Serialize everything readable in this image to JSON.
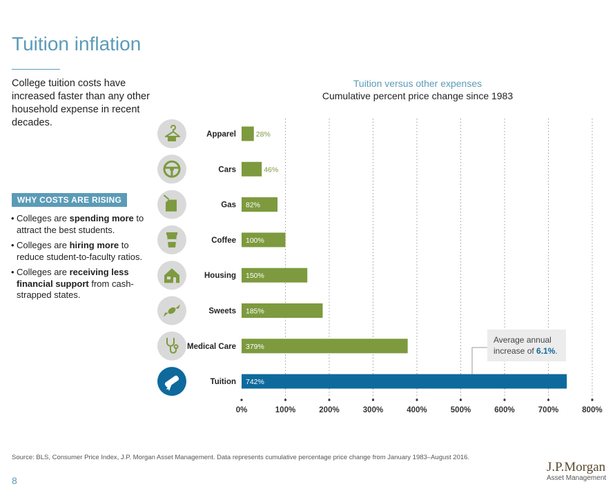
{
  "page": {
    "title": "Tuition inflation",
    "intro": "College tuition costs have increased faster than any other household expense in recent decades.",
    "why_heading": "WHY COSTS ARE RISING",
    "reasons": [
      {
        "pre": "Colleges are ",
        "bold": "spending more",
        "post": " to attract the best students."
      },
      {
        "pre": "Colleges are ",
        "bold": "hiring more",
        "post": " to reduce student-to-faculty ratios."
      },
      {
        "pre": "Colleges are ",
        "bold": "receiving less financial support",
        "post": " from cash-strapped states."
      }
    ],
    "source": "Source: BLS, Consumer Price Index, J.P. Morgan Asset Management. Data represents cumulative percentage price change from January 1983–August 2016.",
    "page_number": "8",
    "logo": {
      "name": "J.P.Morgan",
      "sub": "Asset Management"
    }
  },
  "chart_data": {
    "type": "bar",
    "orientation": "horizontal",
    "title": "Tuition versus other expenses",
    "subtitle": "Cumulative percent price change since 1983",
    "categories": [
      "Apparel",
      "Cars",
      "Gas",
      "Coffee",
      "Housing",
      "Sweets",
      "Medical Care",
      "Tuition"
    ],
    "values": [
      28,
      46,
      82,
      100,
      150,
      185,
      379,
      742
    ],
    "labels": [
      "28%",
      "46%",
      "82%",
      "100%",
      "150%",
      "185%",
      "379%",
      "742%"
    ],
    "icons": [
      "hanger-icon",
      "steering-wheel-icon",
      "gas-can-icon",
      "coffee-cup-icon",
      "house-icon",
      "candy-icon",
      "stethoscope-icon",
      "diploma-icon"
    ],
    "highlight_category": "Tuition",
    "xlim": [
      0,
      800
    ],
    "xticks": [
      0,
      100,
      200,
      300,
      400,
      500,
      600,
      700,
      800
    ],
    "xtick_labels": [
      "0%",
      "100%",
      "200%",
      "300%",
      "400%",
      "500%",
      "600%",
      "700%",
      "800%"
    ],
    "grid": "vertical dotted",
    "legend": "none",
    "annotation": {
      "text_pre": "Average annual increase of ",
      "text_value": "6.1%",
      "text_post": ".",
      "target": "Tuition"
    },
    "colors": {
      "bar": "#7d9a3e",
      "highlight": "#0e6a9c",
      "icon_bg": "#d9d9d9",
      "icon_fg": "#7d9a3e",
      "annotation_bg": "#ececec",
      "accent": "#5b9bb7"
    }
  }
}
